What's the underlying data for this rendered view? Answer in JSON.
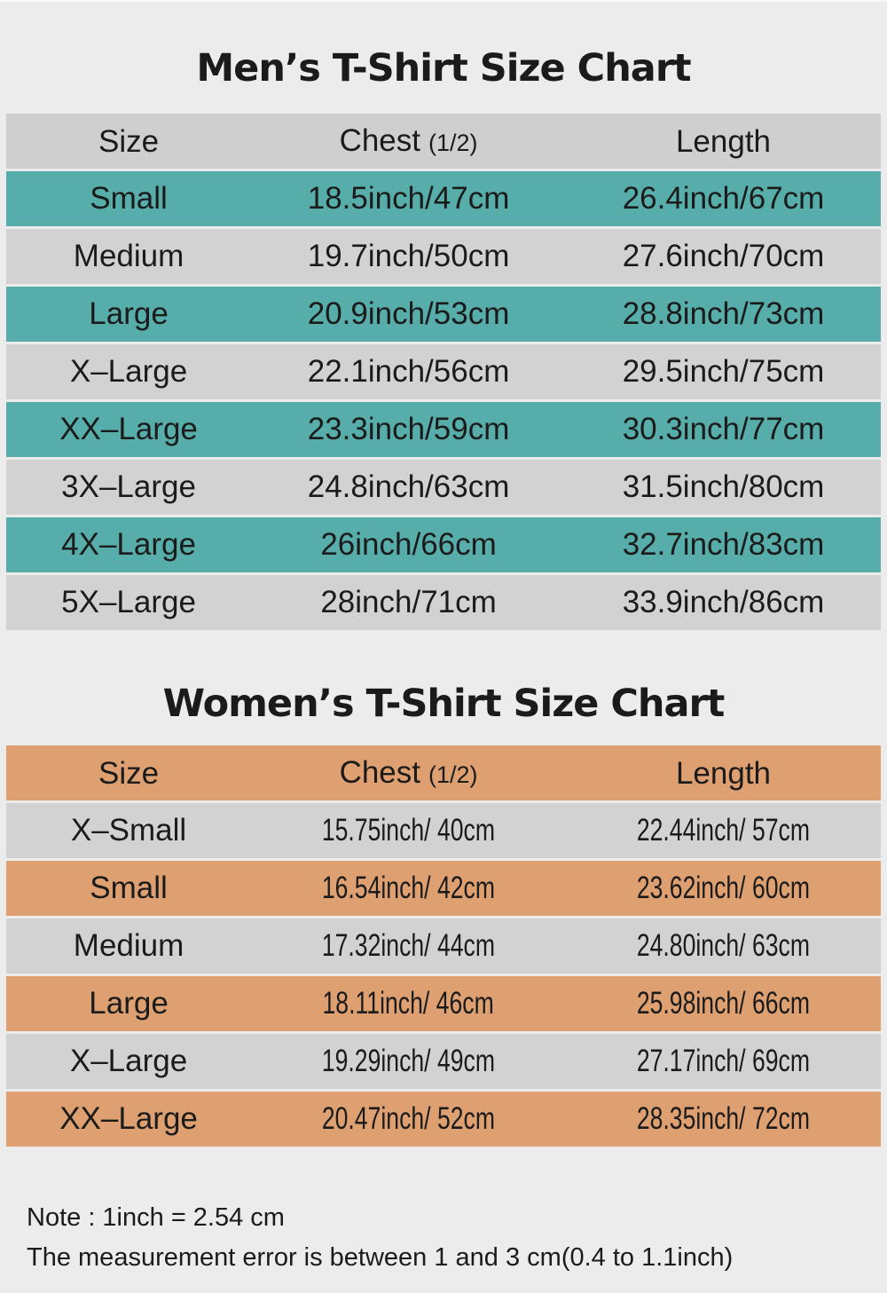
{
  "colors": {
    "page_bg": "#ececec",
    "teal": "#57ada9",
    "orange": "#dfa071",
    "row_gray": "#d2d2d2",
    "header_gray": "#d0cfcf",
    "text": "#1b1b1b"
  },
  "men": {
    "title": "Men’s T-Shirt Size Chart",
    "accent": "teal",
    "condensed": false,
    "header": {
      "size": "Size",
      "chest": "Chest",
      "chest_sub": "(1/2)",
      "length": "Length"
    },
    "rows": [
      {
        "size": "Small",
        "chest": "18.5inch/47cm",
        "length": "26.4inch/67cm",
        "shade": "accent"
      },
      {
        "size": "Medium",
        "chest": "19.7inch/50cm",
        "length": "27.6inch/70cm",
        "shade": "gray"
      },
      {
        "size": "Large",
        "chest": "20.9inch/53cm",
        "length": "28.8inch/73cm",
        "shade": "accent"
      },
      {
        "size": "X–Large",
        "chest": "22.1inch/56cm",
        "length": "29.5inch/75cm",
        "shade": "gray"
      },
      {
        "size": "XX–Large",
        "chest": "23.3inch/59cm",
        "length": "30.3inch/77cm",
        "shade": "accent"
      },
      {
        "size": "3X–Large",
        "chest": "24.8inch/63cm",
        "length": "31.5inch/80cm",
        "shade": "gray"
      },
      {
        "size": "4X–Large",
        "chest": "26inch/66cm",
        "length": "32.7inch/83cm",
        "shade": "accent"
      },
      {
        "size": "5X–Large",
        "chest": "28inch/71cm",
        "length": "33.9inch/86cm",
        "shade": "gray"
      }
    ]
  },
  "women": {
    "title": "Women’s T-Shirt Size Chart",
    "accent": "orange",
    "condensed": true,
    "header": {
      "size": "Size",
      "chest": "Chest",
      "chest_sub": "(1/2)",
      "length": "Length"
    },
    "rows": [
      {
        "size": "X–Small",
        "chest": "15.75inch/ 40cm",
        "length": "22.44inch/ 57cm",
        "shade": "gray"
      },
      {
        "size": "Small",
        "chest": "16.54inch/ 42cm",
        "length": "23.62inch/ 60cm",
        "shade": "accent"
      },
      {
        "size": "Medium",
        "chest": "17.32inch/ 44cm",
        "length": "24.80inch/ 63cm",
        "shade": "gray"
      },
      {
        "size": "Large",
        "chest": "18.11inch/ 46cm",
        "length": "25.98inch/ 66cm",
        "shade": "accent"
      },
      {
        "size": "X–Large",
        "chest": "19.29inch/ 49cm",
        "length": "27.17inch/ 69cm",
        "shade": "gray"
      },
      {
        "size": "XX–Large",
        "chest": "20.47inch/ 52cm",
        "length": "28.35inch/ 72cm",
        "shade": "accent"
      }
    ]
  },
  "note": {
    "line1": "Note : 1inch = 2.54 cm",
    "line2": "The measurement error is between 1 and 3 cm(0.4 to 1.1inch)"
  },
  "chart_data": [
    {
      "type": "table",
      "title": "Men’s T-Shirt Size Chart",
      "columns": [
        "Size",
        "Chest (1/2)",
        "Length"
      ],
      "rows": [
        [
          "Small",
          "18.5inch/47cm",
          "26.4inch/67cm"
        ],
        [
          "Medium",
          "19.7inch/50cm",
          "27.6inch/70cm"
        ],
        [
          "Large",
          "20.9inch/53cm",
          "28.8inch/73cm"
        ],
        [
          "X–Large",
          "22.1inch/56cm",
          "29.5inch/75cm"
        ],
        [
          "XX–Large",
          "23.3inch/59cm",
          "30.3inch/77cm"
        ],
        [
          "3X–Large",
          "24.8inch/63cm",
          "31.5inch/80cm"
        ],
        [
          "4X–Large",
          "26inch/66cm",
          "32.7inch/83cm"
        ],
        [
          "5X–Large",
          "28inch/71cm",
          "33.9inch/86cm"
        ]
      ]
    },
    {
      "type": "table",
      "title": "Women’s T-Shirt Size Chart",
      "columns": [
        "Size",
        "Chest (1/2)",
        "Length"
      ],
      "rows": [
        [
          "X–Small",
          "15.75inch/ 40cm",
          "22.44inch/ 57cm"
        ],
        [
          "Small",
          "16.54inch/ 42cm",
          "23.62inch/ 60cm"
        ],
        [
          "Medium",
          "17.32inch/ 44cm",
          "24.80inch/ 63cm"
        ],
        [
          "Large",
          "18.11inch/ 46cm",
          "25.98inch/ 66cm"
        ],
        [
          "X–Large",
          "19.29inch/ 49cm",
          "27.17inch/ 69cm"
        ],
        [
          "XX–Large",
          "20.47inch/ 52cm",
          "28.35inch/ 72cm"
        ]
      ]
    }
  ]
}
